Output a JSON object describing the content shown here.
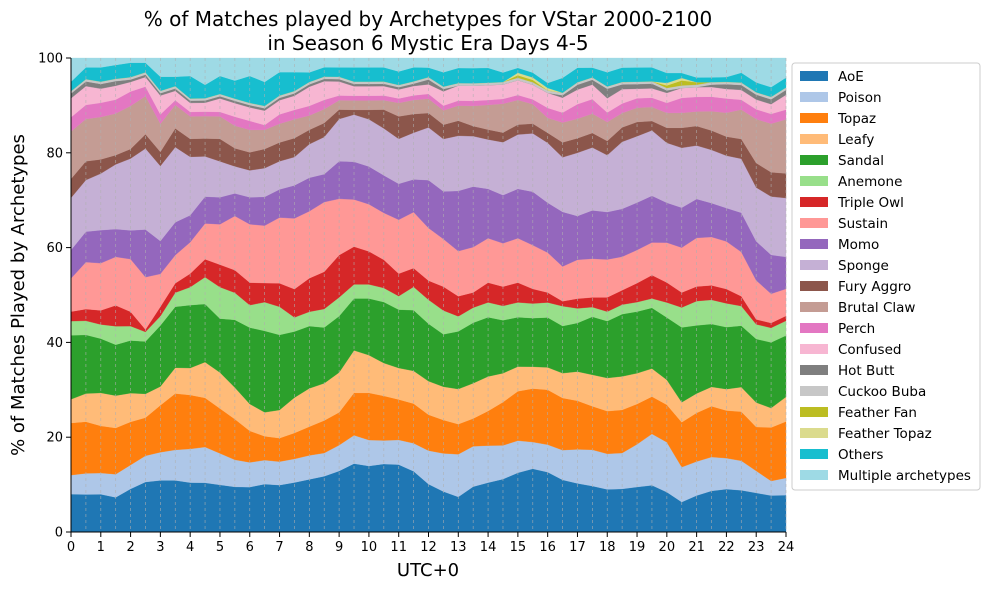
{
  "chart_data": {
    "type": "area",
    "stacked": true,
    "title": "% of Matches played by Archetypes for VStar 2000-2100",
    "subtitle": "in Season 6 Mystic Era Days 4-5",
    "xlabel": "UTC+0",
    "ylabel": "% of Matches Played by Archetypes",
    "xlim": [
      0,
      24
    ],
    "ylim": [
      0,
      100
    ],
    "xticks": [
      "0",
      "1",
      "2",
      "3",
      "4",
      "5",
      "6",
      "7",
      "8",
      "9",
      "10",
      "11",
      "12",
      "13",
      "14",
      "15",
      "16",
      "17",
      "18",
      "19",
      "20",
      "21",
      "22",
      "23",
      "24"
    ],
    "yticks": [
      "0",
      "20",
      "40",
      "60",
      "80",
      "100"
    ],
    "grid": "vertical dashed",
    "legend_position": "outside-right",
    "x": [
      0,
      0.5,
      1,
      1.5,
      2,
      2.5,
      3,
      3.5,
      4,
      4.5,
      5,
      5.5,
      6,
      6.5,
      7,
      7.5,
      8,
      8.5,
      9,
      9.5,
      10,
      10.5,
      11,
      11.5,
      12,
      12.5,
      13,
      13.5,
      14,
      14.5,
      15,
      15.5,
      16,
      16.5,
      17,
      17.5,
      18,
      18.5,
      19,
      19.5,
      20,
      20.5,
      21,
      21.5,
      22,
      22.5,
      23,
      23.5,
      24
    ],
    "series": [
      {
        "name": "AoE",
        "color": "#1f77b4",
        "values": [
          8,
          8,
          8,
          7.5,
          9,
          10.5,
          11,
          11,
          11,
          11,
          10.5,
          10,
          10,
          10,
          10,
          10.5,
          11,
          12,
          13,
          14.5,
          14,
          14.5,
          15,
          13,
          10,
          8.5,
          7,
          9,
          10,
          11,
          12,
          13,
          12,
          10.5,
          10,
          9.5,
          9,
          9,
          9.5,
          10,
          8,
          6,
          7.5,
          8.5,
          9,
          8.5,
          8,
          7.5,
          7.5
        ]
      },
      {
        "name": "Poison",
        "color": "#aec7e8",
        "values": [
          4,
          4.5,
          4.5,
          5,
          5,
          5.5,
          6,
          6.5,
          7.5,
          8,
          7,
          6,
          5.5,
          5,
          5,
          5,
          5,
          5,
          5.5,
          6,
          5.5,
          5,
          5.5,
          6,
          7,
          8,
          8.5,
          8,
          7.5,
          7,
          6.5,
          5.5,
          5.5,
          6,
          7,
          7.5,
          7.5,
          7.5,
          9,
          11,
          10,
          7,
          7,
          7,
          6.5,
          6,
          4.5,
          3,
          3.5
        ]
      },
      {
        "name": "Topaz",
        "color": "#ff7f0e",
        "values": [
          11,
          11,
          10,
          10,
          9,
          8,
          10,
          12,
          12,
          11,
          10,
          9,
          7,
          5,
          5,
          5.5,
          6,
          7,
          7,
          9,
          10,
          9.5,
          9,
          8.5,
          7.5,
          7,
          6,
          5.5,
          7,
          9,
          10,
          11,
          11,
          10.5,
          10,
          9,
          9,
          9,
          8.5,
          8,
          7.5,
          9,
          10,
          10.5,
          10,
          10,
          9,
          11,
          11.5
        ]
      },
      {
        "name": "Leafy",
        "color": "#ffbb78",
        "values": [
          5,
          6,
          7,
          7,
          6,
          5,
          4,
          5.5,
          6,
          8,
          8,
          7,
          6,
          5,
          6,
          7.5,
          8,
          8,
          8.5,
          9,
          8,
          7,
          7,
          7,
          7,
          7,
          7,
          7,
          7,
          6,
          5,
          4.5,
          4.5,
          5,
          6,
          6.5,
          7,
          7,
          6.5,
          6,
          5,
          4,
          4,
          4,
          4.5,
          5,
          5,
          4,
          5
        ]
      },
      {
        "name": "Sandal",
        "color": "#2ca02c",
        "values": [
          13.5,
          12.5,
          11.5,
          11,
          11,
          11,
          13,
          13,
          14,
          13,
          12,
          15,
          17,
          17,
          16,
          14,
          13,
          12,
          12,
          11,
          12,
          13,
          13,
          13,
          12,
          11,
          11.5,
          12,
          12,
          11,
          10,
          10,
          10,
          9.5,
          10,
          12,
          12,
          13,
          13,
          13,
          12.5,
          15,
          14,
          13,
          13,
          12.5,
          13,
          13.5,
          12.5
        ]
      },
      {
        "name": "Anemone",
        "color": "#98df8a",
        "values": [
          3,
          3,
          3,
          4,
          3,
          2,
          2,
          3,
          4,
          6,
          7,
          6,
          5,
          6,
          6,
          3,
          3,
          4,
          4,
          3,
          3,
          3,
          3,
          5,
          5,
          5,
          3,
          3,
          3,
          3,
          3,
          3,
          3,
          4,
          3,
          2,
          2,
          2,
          2,
          2,
          3,
          4,
          5,
          5,
          5,
          4,
          3,
          3,
          3
        ]
      },
      {
        "name": "Triple Owl",
        "color": "#d62728",
        "values": [
          2,
          2.5,
          3,
          4.5,
          3,
          0.5,
          2,
          2,
          3,
          4,
          5,
          5,
          5,
          4,
          5,
          6,
          7,
          8,
          9,
          8,
          7,
          6,
          5,
          4,
          4,
          5,
          4,
          3,
          4,
          4,
          4,
          3,
          2,
          1,
          2,
          2,
          3,
          3,
          4,
          5,
          4,
          3,
          3,
          3,
          3,
          2,
          1,
          1,
          1
        ]
      },
      {
        "name": "Sustain",
        "color": "#ff9896",
        "values": [
          7,
          10,
          10,
          10.5,
          11,
          11,
          7,
          6,
          7,
          8,
          9,
          12,
          13,
          12,
          14,
          15,
          14,
          15,
          12,
          10,
          10,
          10,
          12,
          12,
          11,
          10,
          9,
          9,
          9,
          9,
          9,
          9,
          8,
          7,
          8,
          8,
          8,
          7,
          7,
          7,
          8,
          9,
          10,
          10,
          10,
          9,
          8,
          6,
          5.5
        ]
      },
      {
        "name": "Momo",
        "color": "#9467bd",
        "values": [
          6,
          6.5,
          7,
          6,
          6,
          10,
          7,
          7,
          6,
          6,
          6,
          5,
          6,
          6,
          6,
          7,
          7,
          6,
          8,
          8,
          8,
          8,
          8,
          7,
          10,
          10,
          12,
          12,
          10,
          10,
          10,
          11,
          10,
          11,
          9,
          10,
          10,
          10,
          10,
          10,
          8,
          8,
          8,
          7,
          7,
          8,
          8,
          8,
          6.5
        ]
      },
      {
        "name": "Sponge",
        "color": "#c5b0d5",
        "values": [
          11,
          11,
          12,
          14,
          15,
          17,
          16,
          16,
          13,
          9,
          8,
          6,
          6,
          6,
          6,
          6,
          7,
          8,
          9,
          10,
          10,
          10,
          10,
          10,
          11,
          11,
          11,
          10,
          10,
          11,
          11,
          12,
          12,
          11,
          13,
          13,
          12,
          14,
          14,
          14,
          12,
          12,
          11,
          11,
          11,
          11,
          11,
          12,
          12
        ]
      },
      {
        "name": "Fury Aggro",
        "color": "#8c564b",
        "values": [
          4,
          4,
          3,
          2,
          2,
          3,
          3,
          4,
          4,
          4,
          5,
          4,
          4,
          4,
          4,
          4,
          3,
          3,
          2,
          1,
          2,
          4,
          5,
          4,
          3,
          3,
          3,
          2,
          2,
          2,
          2,
          2,
          2,
          3,
          3,
          3,
          3,
          3,
          3,
          2,
          3,
          4,
          4,
          4,
          4,
          4,
          5,
          5,
          5
        ]
      },
      {
        "name": "Brutal Claw",
        "color": "#c49c94",
        "values": [
          10,
          9,
          9,
          9,
          9,
          8,
          6,
          5,
          5,
          5,
          5,
          5,
          5,
          4,
          4,
          4,
          3,
          3,
          2,
          2,
          2,
          2,
          3,
          3,
          3,
          3,
          3,
          4,
          5,
          6,
          5,
          4,
          3,
          4,
          4,
          4,
          4,
          3,
          3,
          3,
          3,
          3,
          3,
          4,
          5,
          6,
          9,
          10,
          11
        ]
      },
      {
        "name": "Perch",
        "color": "#e377c2",
        "values": [
          3,
          3,
          3,
          3,
          3,
          2,
          2,
          1,
          1,
          1,
          1,
          2,
          2,
          1,
          2,
          2,
          2,
          2,
          1,
          1,
          1,
          1,
          1,
          1,
          1,
          1,
          1,
          1,
          1,
          1,
          1,
          1,
          2,
          2,
          3,
          3,
          2,
          2,
          2,
          2,
          2,
          3,
          3,
          3,
          3,
          2,
          2,
          2,
          2
        ]
      },
      {
        "name": "Confused",
        "color": "#f7b6d2",
        "values": [
          4,
          4,
          3,
          3,
          2,
          2,
          4,
          2,
          2,
          2,
          3,
          3,
          3,
          3,
          3,
          3,
          4,
          4,
          3,
          2,
          2,
          2,
          2,
          2,
          2,
          3,
          3,
          3,
          3,
          3,
          3,
          3,
          3,
          3,
          3,
          3,
          3,
          3,
          2,
          2,
          2,
          2,
          2,
          2,
          2,
          2,
          2,
          2,
          3
        ]
      },
      {
        "name": "Hot Butt",
        "color": "#7f7f7f",
        "values": [
          1,
          1,
          1,
          1,
          0.5,
          0.5,
          0.5,
          0.5,
          0.5,
          0.5,
          0.5,
          0.5,
          0.5,
          0.5,
          0.5,
          0.5,
          0.5,
          0.5,
          0.5,
          0.5,
          0.5,
          0.5,
          0.5,
          0.5,
          1,
          0.5,
          0,
          0,
          0,
          0,
          0,
          0,
          0,
          0.5,
          1,
          1,
          2,
          1,
          1,
          1,
          0.5,
          0,
          0,
          0.5,
          1,
          1,
          1,
          1,
          1
        ]
      },
      {
        "name": "Cuckoo Buba",
        "color": "#c7c7c7",
        "values": [
          0.5,
          0.5,
          0.5,
          0.5,
          0.5,
          0.5,
          0.5,
          0.5,
          0.5,
          0.5,
          0.5,
          0.5,
          0.5,
          0.5,
          0.5,
          0.5,
          0.5,
          0.5,
          0.5,
          0.5,
          0.5,
          0.5,
          0.5,
          0.5,
          0.5,
          0.5,
          0.5,
          0.5,
          0.5,
          0.5,
          0.5,
          0.5,
          0.5,
          0.5,
          0.5,
          0.5,
          0.5,
          0.5,
          0.5,
          0.5,
          0.5,
          0.5,
          0.5,
          0.5,
          0.5,
          0.5,
          0.5,
          0.5,
          0.5
        ]
      },
      {
        "name": "Feather Fan",
        "color": "#bcbd22",
        "values": [
          0,
          0,
          0,
          0,
          0,
          0,
          0,
          0,
          0,
          0,
          0,
          0,
          0,
          0,
          0,
          0,
          0,
          0,
          0,
          0,
          0,
          0,
          0,
          0,
          0,
          0,
          0,
          0,
          0,
          0,
          0.5,
          0.5,
          0,
          0,
          0,
          0,
          0,
          0,
          0,
          0,
          0.5,
          1,
          0.5,
          0,
          0,
          0,
          0,
          0,
          0
        ]
      },
      {
        "name": "Feather Topaz",
        "color": "#dbdb8d",
        "values": [
          0,
          0,
          0,
          0,
          0,
          0,
          0,
          0,
          0,
          0,
          0,
          0,
          0,
          0,
          0,
          0,
          0,
          0,
          0,
          0,
          0,
          0,
          0,
          0,
          0,
          0,
          0,
          0,
          0,
          0,
          0.5,
          0.5,
          0.5,
          0,
          0,
          0,
          0,
          0,
          0,
          0,
          0.5,
          0.5,
          0,
          0,
          0,
          0,
          0,
          0,
          0
        ]
      },
      {
        "name": "Others",
        "color": "#17becf",
        "values": [
          2,
          2.5,
          3,
          3,
          3,
          2,
          3,
          2,
          5,
          3,
          4,
          4,
          6,
          5,
          5,
          4,
          2,
          2,
          2,
          3,
          3,
          3,
          3,
          3,
          2,
          3,
          3,
          3,
          3,
          2,
          1,
          1,
          1,
          3,
          3,
          2,
          3,
          3,
          3,
          3,
          2,
          1,
          1,
          1,
          1,
          2,
          2,
          2,
          2
        ]
      },
      {
        "name": "Multiple archetypes",
        "color": "#9edae5",
        "values": [
          5,
          2,
          2,
          1.5,
          1,
          1,
          4,
          4,
          4,
          6,
          4,
          5,
          4,
          5,
          3,
          3,
          3,
          2,
          2,
          2,
          2,
          2,
          3,
          2,
          2,
          3,
          2,
          2,
          2,
          3,
          2,
          3,
          5,
          4,
          2,
          2,
          3,
          2,
          2,
          2,
          3,
          3,
          4,
          4,
          4,
          3,
          5,
          6,
          4
        ]
      }
    ]
  }
}
